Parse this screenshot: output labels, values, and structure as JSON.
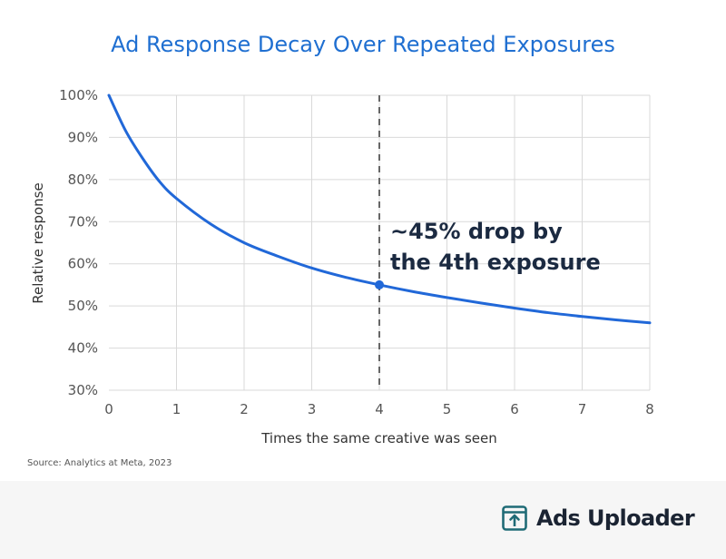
{
  "chart_data": {
    "type": "line",
    "title": "Ad Response Decay Over Repeated Exposures",
    "xlabel": "Times the same creative was seen",
    "ylabel": "Relative response",
    "xlim": [
      0,
      8
    ],
    "ylim": [
      30,
      100
    ],
    "x_ticks": [
      "0",
      "1",
      "2",
      "3",
      "4",
      "5",
      "6",
      "7",
      "8"
    ],
    "y_ticks": [
      "30%",
      "40%",
      "50%",
      "60%",
      "70%",
      "80%",
      "90%",
      "100%"
    ],
    "grid": true,
    "series": [
      {
        "x": [
          0,
          0.25,
          0.5,
          0.75,
          1,
          1.5,
          2,
          2.5,
          3,
          3.5,
          4,
          4.5,
          5,
          5.5,
          6,
          6.5,
          7,
          7.5,
          8
        ],
        "values": [
          100,
          91.5,
          85,
          79.5,
          75.5,
          69.5,
          65,
          61.8,
          59,
          56.8,
          55,
          53.4,
          52,
          50.7,
          49.5,
          48.4,
          47.5,
          46.7,
          46
        ]
      }
    ],
    "marker": {
      "x": 4,
      "y": 55
    },
    "reference_line": {
      "x": 4,
      "style": "dashed"
    },
    "annotation": {
      "line1": "~45% drop by",
      "line2": "the 4th exposure"
    },
    "source": "Source: Analytics at Meta, 2023"
  },
  "colors": {
    "title": "#1f6fd1",
    "line": "#2168d8",
    "grid": "#d9d9d9",
    "axis_text": "#555555",
    "annotation": "#1b2a41",
    "reference_line": "#666666"
  },
  "brand": {
    "name": "Ads Uploader",
    "icon": "upload-box-icon"
  }
}
